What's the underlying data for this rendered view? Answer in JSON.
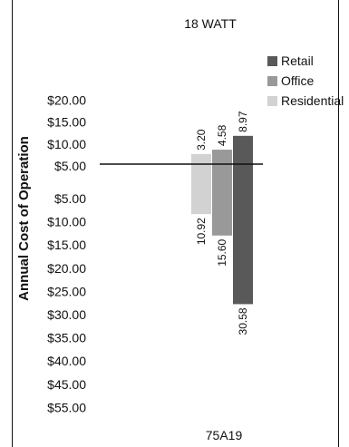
{
  "chart_data": {
    "type": "bar",
    "title": "18 WATT",
    "xlabel": "75A19",
    "ylabel": "Annual Cost of Operation",
    "series": [
      {
        "name": "Residential",
        "color": "#d2d2d2",
        "positive": 3.2,
        "negative": 10.92,
        "positive_label": "3.20",
        "negative_label": "10.92"
      },
      {
        "name": "Office",
        "color": "#999999",
        "positive": 4.58,
        "negative": 15.6,
        "positive_label": "4.58",
        "negative_label": "15.60"
      },
      {
        "name": "Retail",
        "color": "#595959",
        "positive": 8.97,
        "negative": 30.58,
        "positive_label": "8.97",
        "negative_label": "30.58"
      }
    ],
    "legend_order": [
      "Retail",
      "Office",
      "Residential"
    ],
    "legend_position": "top-right",
    "ylim": [
      -55,
      20
    ],
    "yticks_positive": [
      20,
      15,
      10,
      5
    ],
    "yticks_positive_labels": [
      "$20.00",
      "$15.00",
      "$10.00",
      "$5.00"
    ],
    "yticks_negative": [
      5,
      10,
      15,
      20,
      25,
      30,
      35,
      40,
      45,
      55
    ],
    "yticks_negative_labels": [
      "$5.00",
      "$10.00",
      "$15.00",
      "$20.00",
      "$25.00",
      "$30.00",
      "$35.00",
      "$40.00",
      "$45.00",
      "$55.00"
    ],
    "grid": false
  }
}
